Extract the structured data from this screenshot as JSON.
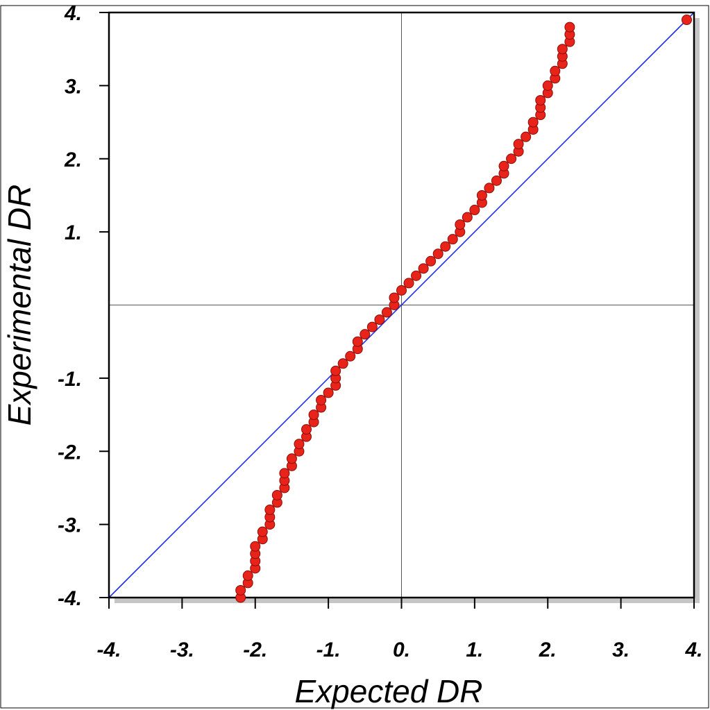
{
  "chart_data": {
    "type": "scatter",
    "xlabel": "Expected DR",
    "ylabel": "Experimental DR",
    "xlim": [
      -4,
      4
    ],
    "ylim": [
      -4,
      4
    ],
    "xticks": [
      {
        "value": -4,
        "label": "-4."
      },
      {
        "value": -3,
        "label": "-3."
      },
      {
        "value": -2,
        "label": "-2."
      },
      {
        "value": -1,
        "label": "-1."
      },
      {
        "value": 0,
        "label": "0."
      },
      {
        "value": 1,
        "label": "1."
      },
      {
        "value": 2,
        "label": "2."
      },
      {
        "value": 3,
        "label": "3."
      },
      {
        "value": 4,
        "label": "4."
      }
    ],
    "yticks": [
      {
        "value": -4,
        "label": "-4."
      },
      {
        "value": -3,
        "label": "-3."
      },
      {
        "value": -2,
        "label": "-2."
      },
      {
        "value": -1,
        "label": "-1."
      },
      {
        "value": 1,
        "label": "1."
      },
      {
        "value": 2,
        "label": "2."
      },
      {
        "value": 3,
        "label": "3."
      },
      {
        "value": 4,
        "label": "4."
      }
    ],
    "zero_lines": true,
    "grid": false,
    "reference_line": {
      "x": [
        -4,
        4
      ],
      "y": [
        -4,
        4
      ],
      "color": "#1f2fe0"
    },
    "marker_color": "#e8231a",
    "marker_edge": "#8a0d08",
    "points": [
      [
        -2.2,
        -4.0
      ],
      [
        -2.2,
        -3.9
      ],
      [
        -2.1,
        -3.8
      ],
      [
        -2.1,
        -3.7
      ],
      [
        -2.0,
        -3.6
      ],
      [
        -2.0,
        -3.5
      ],
      [
        -2.0,
        -3.4
      ],
      [
        -2.0,
        -3.3
      ],
      [
        -1.9,
        -3.2
      ],
      [
        -1.9,
        -3.1
      ],
      [
        -1.8,
        -3.0
      ],
      [
        -1.8,
        -2.9
      ],
      [
        -1.8,
        -2.8
      ],
      [
        -1.7,
        -2.7
      ],
      [
        -1.7,
        -2.6
      ],
      [
        -1.6,
        -2.5
      ],
      [
        -1.6,
        -2.4
      ],
      [
        -1.6,
        -2.3
      ],
      [
        -1.5,
        -2.2
      ],
      [
        -1.5,
        -2.1
      ],
      [
        -1.4,
        -2.0
      ],
      [
        -1.4,
        -1.9
      ],
      [
        -1.3,
        -1.8
      ],
      [
        -1.3,
        -1.7
      ],
      [
        -1.2,
        -1.6
      ],
      [
        -1.2,
        -1.5
      ],
      [
        -1.1,
        -1.4
      ],
      [
        -1.1,
        -1.3
      ],
      [
        -1.0,
        -1.2
      ],
      [
        -0.9,
        -1.1
      ],
      [
        -0.9,
        -1.0
      ],
      [
        -0.9,
        -0.9
      ],
      [
        -0.8,
        -0.8
      ],
      [
        -0.7,
        -0.7
      ],
      [
        -0.6,
        -0.6
      ],
      [
        -0.6,
        -0.5
      ],
      [
        -0.5,
        -0.4
      ],
      [
        -0.4,
        -0.3
      ],
      [
        -0.3,
        -0.2
      ],
      [
        -0.2,
        -0.1
      ],
      [
        -0.1,
        0.0
      ],
      [
        -0.1,
        0.1
      ],
      [
        0.0,
        0.2
      ],
      [
        0.1,
        0.3
      ],
      [
        0.2,
        0.4
      ],
      [
        0.3,
        0.5
      ],
      [
        0.4,
        0.6
      ],
      [
        0.5,
        0.7
      ],
      [
        0.6,
        0.8
      ],
      [
        0.7,
        0.9
      ],
      [
        0.8,
        1.0
      ],
      [
        0.8,
        1.1
      ],
      [
        0.9,
        1.2
      ],
      [
        1.0,
        1.3
      ],
      [
        1.1,
        1.4
      ],
      [
        1.1,
        1.5
      ],
      [
        1.2,
        1.6
      ],
      [
        1.3,
        1.7
      ],
      [
        1.4,
        1.8
      ],
      [
        1.4,
        1.9
      ],
      [
        1.5,
        2.0
      ],
      [
        1.6,
        2.1
      ],
      [
        1.6,
        2.2
      ],
      [
        1.7,
        2.3
      ],
      [
        1.8,
        2.4
      ],
      [
        1.8,
        2.5
      ],
      [
        1.9,
        2.6
      ],
      [
        1.9,
        2.7
      ],
      [
        1.9,
        2.8
      ],
      [
        2.0,
        2.9
      ],
      [
        2.0,
        3.0
      ],
      [
        2.1,
        3.1
      ],
      [
        2.1,
        3.2
      ],
      [
        2.2,
        3.3
      ],
      [
        2.2,
        3.4
      ],
      [
        2.2,
        3.5
      ],
      [
        2.3,
        3.6
      ],
      [
        2.3,
        3.7
      ],
      [
        2.3,
        3.8
      ],
      [
        3.9,
        3.9
      ]
    ]
  }
}
